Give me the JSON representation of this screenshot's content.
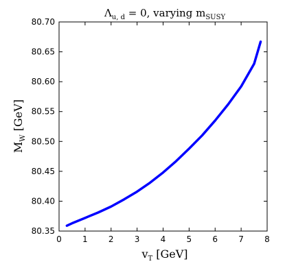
{
  "chart_data": {
    "type": "line",
    "title": {
      "lambda_symbol": "Λ",
      "lambda_subscript": "u, d",
      "equals_text": " = 0, varying ",
      "m_symbol": "m",
      "m_subscript": "SUSY"
    },
    "xlabel": {
      "symbol": "v",
      "subscript": "T",
      "unit": " [GeV]"
    },
    "ylabel": {
      "symbol": "M",
      "subscript": "W",
      "unit": " [GeV]"
    },
    "xlim": [
      0,
      8
    ],
    "ylim": [
      80.35,
      80.7
    ],
    "xticks": [
      "0",
      "1",
      "2",
      "3",
      "4",
      "5",
      "6",
      "7",
      "8"
    ],
    "yticks": [
      "80.35",
      "80.40",
      "80.45",
      "80.50",
      "80.55",
      "80.60",
      "80.65",
      "80.70"
    ],
    "grid": false,
    "series": [
      {
        "color": "#0000ff",
        "x": [
          0.3,
          0.5,
          1.0,
          1.5,
          2.0,
          2.5,
          3.0,
          3.5,
          4.0,
          4.5,
          5.0,
          5.5,
          6.0,
          6.5,
          7.0,
          7.5,
          7.75
        ],
        "y": [
          80.359,
          80.363,
          80.372,
          80.381,
          80.391,
          80.403,
          80.416,
          80.431,
          80.448,
          80.467,
          80.488,
          80.51,
          80.535,
          80.562,
          80.592,
          80.63,
          80.667
        ]
      }
    ]
  }
}
